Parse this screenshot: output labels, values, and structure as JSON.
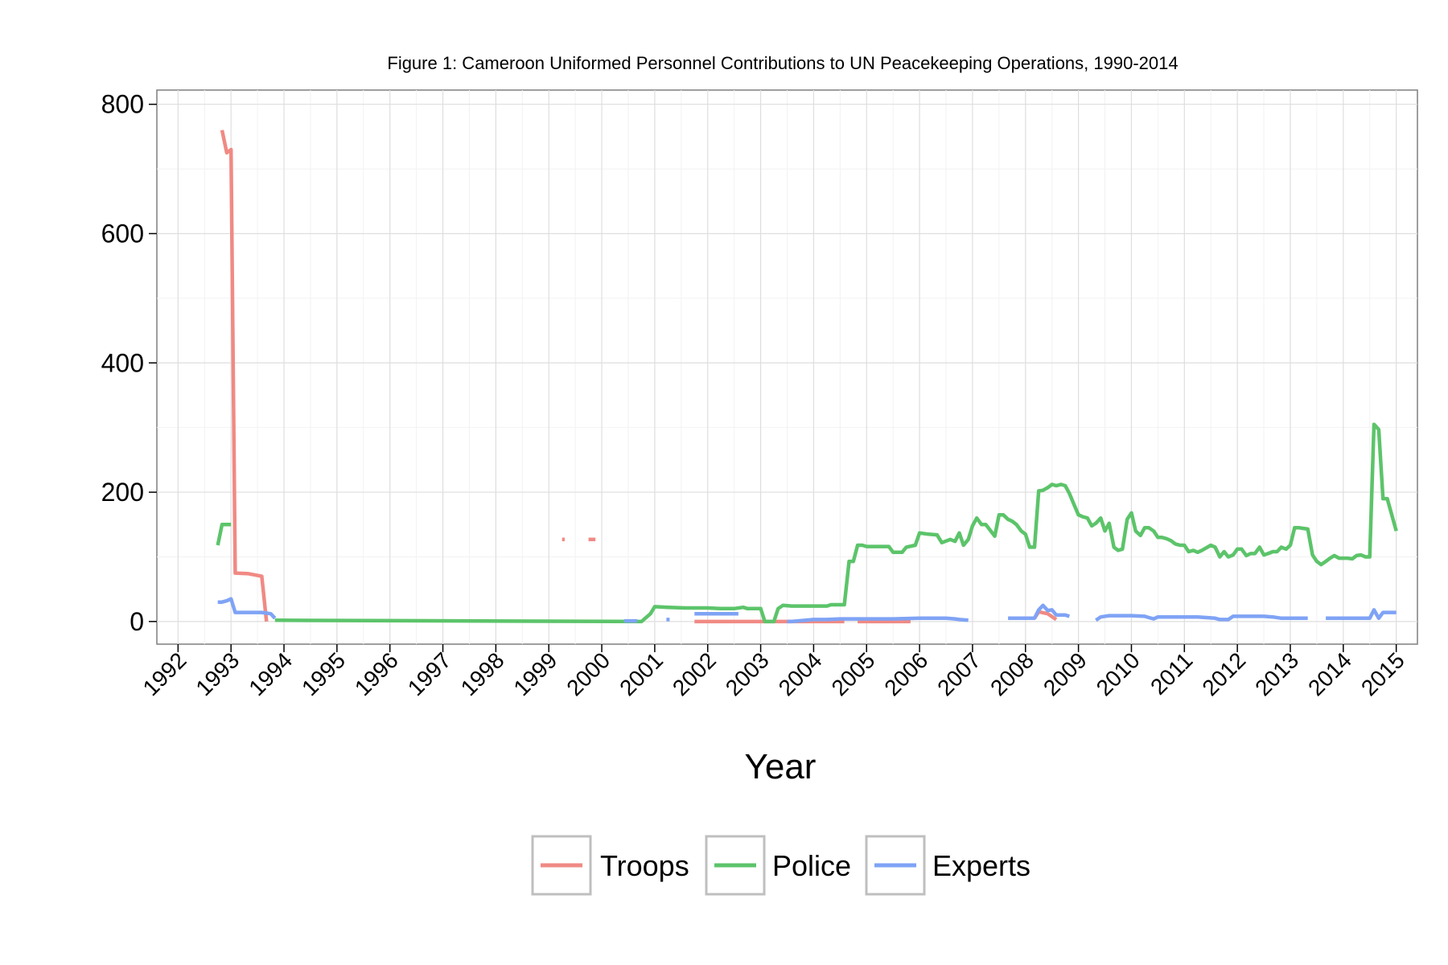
{
  "chart_data": {
    "type": "line",
    "title": "Figure 1: Cameroon Uniformed Personnel Contributions to UN Peacekeeping Operations, 1990-2014",
    "xlabel": "Year",
    "ylabel": "",
    "xlim": [
      1991.6,
      2015.4
    ],
    "ylim": [
      -35,
      822
    ],
    "x_ticks": [
      1992,
      1993,
      1994,
      1995,
      1996,
      1997,
      1998,
      1999,
      2000,
      2001,
      2002,
      2003,
      2004,
      2005,
      2006,
      2007,
      2008,
      2009,
      2010,
      2011,
      2012,
      2013,
      2014,
      2015
    ],
    "x_tick_labels": [
      "1992",
      "1993",
      "1994",
      "1995",
      "1996",
      "1997",
      "1998",
      "1999",
      "2000",
      "2001",
      "2002",
      "2003",
      "2004",
      "2005",
      "2006",
      "2007",
      "2008",
      "2009",
      "2010",
      "2011",
      "2012",
      "2013",
      "2014",
      "2015"
    ],
    "y_ticks": [
      0,
      200,
      400,
      600,
      800
    ],
    "y_tick_labels": [
      "0",
      "200",
      "400",
      "600",
      "800"
    ],
    "grid": true,
    "legend_position": "bottom",
    "series": [
      {
        "name": "Troops",
        "color": "#f08a84",
        "segments": [
          [
            [
              1992.83,
              760
            ],
            [
              1992.92,
              725
            ],
            [
              1993.0,
              730
            ],
            [
              1993.08,
              75
            ],
            [
              1993.33,
              74
            ],
            [
              1993.58,
              70
            ],
            [
              1993.67,
              0
            ]
          ],
          [
            [
              1999.25,
              127
            ],
            [
              1999.3,
              127
            ]
          ],
          [
            [
              1999.75,
              127
            ],
            [
              1999.88,
              127
            ]
          ],
          [
            [
              2001.75,
              0
            ],
            [
              2003.5,
              0
            ]
          ],
          [
            [
              2003.5,
              0
            ],
            [
              2004.58,
              0
            ]
          ],
          [
            [
              2004.83,
              0
            ],
            [
              2005.83,
              0
            ]
          ],
          [
            [
              2008.17,
              5
            ],
            [
              2008.25,
              15
            ],
            [
              2008.42,
              12
            ],
            [
              2008.58,
              3
            ]
          ]
        ]
      },
      {
        "name": "Police",
        "color": "#5cc46a",
        "segments": [
          [
            [
              1992.75,
              118
            ],
            [
              1992.83,
              150
            ],
            [
              1992.92,
              150
            ],
            [
              1993.0,
              150
            ]
          ],
          [
            [
              1993.83,
              2
            ],
            [
              2000.75,
              0
            ],
            [
              2000.92,
              12
            ],
            [
              2001.0,
              23
            ],
            [
              2001.25,
              22
            ],
            [
              2001.58,
              21
            ],
            [
              2002.0,
              21
            ],
            [
              2002.25,
              20
            ],
            [
              2002.5,
              20
            ],
            [
              2002.67,
              22
            ],
            [
              2002.75,
              20
            ],
            [
              2003.0,
              20
            ],
            [
              2003.08,
              0
            ],
            [
              2003.25,
              0
            ],
            [
              2003.33,
              20
            ],
            [
              2003.42,
              25
            ],
            [
              2003.58,
              24
            ],
            [
              2004.0,
              24
            ],
            [
              2004.25,
              24
            ],
            [
              2004.33,
              26
            ],
            [
              2004.58,
              26
            ],
            [
              2004.67,
              93
            ],
            [
              2004.75,
              93
            ],
            [
              2004.83,
              118
            ],
            [
              2004.92,
              118
            ],
            [
              2005.0,
              116
            ],
            [
              2005.42,
              116
            ],
            [
              2005.5,
              107
            ],
            [
              2005.67,
              107
            ],
            [
              2005.75,
              115
            ],
            [
              2005.92,
              118
            ],
            [
              2006.0,
              137
            ],
            [
              2006.17,
              135
            ],
            [
              2006.33,
              134
            ],
            [
              2006.42,
              122
            ],
            [
              2006.58,
              127
            ],
            [
              2006.67,
              124
            ],
            [
              2006.75,
              137
            ],
            [
              2006.83,
              118
            ],
            [
              2006.92,
              127
            ],
            [
              2007.0,
              148
            ],
            [
              2007.08,
              160
            ],
            [
              2007.17,
              150
            ],
            [
              2007.25,
              150
            ],
            [
              2007.42,
              132
            ],
            [
              2007.5,
              165
            ],
            [
              2007.58,
              165
            ],
            [
              2007.67,
              158
            ],
            [
              2007.75,
              155
            ],
            [
              2007.83,
              150
            ],
            [
              2007.92,
              140
            ],
            [
              2008.0,
              135
            ],
            [
              2008.08,
              115
            ],
            [
              2008.17,
              115
            ],
            [
              2008.25,
              202
            ],
            [
              2008.33,
              203
            ],
            [
              2008.42,
              207
            ],
            [
              2008.5,
              212
            ],
            [
              2008.58,
              210
            ],
            [
              2008.67,
              212
            ],
            [
              2008.75,
              210
            ],
            [
              2008.83,
              198
            ],
            [
              2008.92,
              180
            ],
            [
              2009.0,
              165
            ],
            [
              2009.08,
              162
            ],
            [
              2009.17,
              160
            ],
            [
              2009.25,
              148
            ],
            [
              2009.33,
              152
            ],
            [
              2009.42,
              160
            ],
            [
              2009.5,
              140
            ],
            [
              2009.58,
              152
            ],
            [
              2009.67,
              115
            ],
            [
              2009.75,
              110
            ],
            [
              2009.83,
              112
            ],
            [
              2009.92,
              158
            ],
            [
              2010.0,
              168
            ],
            [
              2010.08,
              140
            ],
            [
              2010.17,
              133
            ],
            [
              2010.25,
              145
            ],
            [
              2010.33,
              145
            ],
            [
              2010.42,
              140
            ],
            [
              2010.5,
              130
            ],
            [
              2010.58,
              130
            ],
            [
              2010.67,
              128
            ],
            [
              2010.75,
              125
            ],
            [
              2010.83,
              120
            ],
            [
              2010.92,
              118
            ],
            [
              2011.0,
              118
            ],
            [
              2011.08,
              108
            ],
            [
              2011.17,
              110
            ],
            [
              2011.25,
              107
            ],
            [
              2011.33,
              110
            ],
            [
              2011.5,
              118
            ],
            [
              2011.58,
              115
            ],
            [
              2011.67,
              100
            ],
            [
              2011.75,
              108
            ],
            [
              2011.83,
              100
            ],
            [
              2011.92,
              103
            ],
            [
              2012.0,
              112
            ],
            [
              2012.08,
              112
            ],
            [
              2012.17,
              102
            ],
            [
              2012.25,
              105
            ],
            [
              2012.33,
              105
            ],
            [
              2012.42,
              115
            ],
            [
              2012.5,
              103
            ],
            [
              2012.58,
              105
            ],
            [
              2012.67,
              108
            ],
            [
              2012.75,
              108
            ],
            [
              2012.83,
              115
            ],
            [
              2012.92,
              112
            ],
            [
              2013.0,
              118
            ],
            [
              2013.08,
              145
            ],
            [
              2013.17,
              145
            ],
            [
              2013.25,
              144
            ],
            [
              2013.33,
              143
            ],
            [
              2013.42,
              103
            ],
            [
              2013.5,
              93
            ],
            [
              2013.58,
              88
            ],
            [
              2013.67,
              93
            ],
            [
              2013.75,
              98
            ],
            [
              2013.83,
              102
            ],
            [
              2013.92,
              98
            ],
            [
              2014.0,
              98
            ],
            [
              2014.08,
              98
            ],
            [
              2014.17,
              97
            ],
            [
              2014.25,
              102
            ],
            [
              2014.33,
              103
            ],
            [
              2014.42,
              100
            ],
            [
              2014.5,
              100
            ],
            [
              2014.58,
              305
            ],
            [
              2014.67,
              297
            ],
            [
              2014.75,
              190
            ],
            [
              2014.83,
              190
            ],
            [
              2015.0,
              140
            ]
          ]
        ]
      },
      {
        "name": "Experts",
        "color": "#7fa3f5",
        "segments": [
          [
            [
              1992.75,
              30
            ],
            [
              1992.83,
              30
            ],
            [
              1992.92,
              32
            ],
            [
              1993.0,
              35
            ],
            [
              1993.08,
              14
            ],
            [
              1993.17,
              14
            ],
            [
              1993.58,
              14
            ],
            [
              1993.75,
              12
            ],
            [
              1993.83,
              5
            ]
          ],
          [
            [
              2000.42,
              1
            ],
            [
              2000.67,
              1
            ]
          ],
          [
            [
              2001.25,
              3
            ],
            [
              2001.25,
              3
            ]
          ],
          [
            [
              2001.75,
              12
            ],
            [
              2002.58,
              12
            ]
          ],
          [
            [
              2003.5,
              0
            ],
            [
              2003.58,
              0
            ],
            [
              2004.0,
              3
            ],
            [
              2004.25,
              3
            ],
            [
              2004.5,
              4
            ],
            [
              2005.0,
              4
            ],
            [
              2005.5,
              4
            ],
            [
              2006.0,
              5
            ],
            [
              2006.5,
              5
            ],
            [
              2006.67,
              4
            ],
            [
              2006.75,
              3
            ],
            [
              2006.92,
              2
            ]
          ],
          [
            [
              2007.67,
              5
            ],
            [
              2008.17,
              5
            ],
            [
              2008.25,
              18
            ],
            [
              2008.33,
              25
            ],
            [
              2008.42,
              17
            ],
            [
              2008.5,
              18
            ],
            [
              2008.58,
              10
            ],
            [
              2008.75,
              10
            ],
            [
              2008.83,
              8
            ]
          ],
          [
            [
              2009.33,
              2
            ],
            [
              2009.42,
              7
            ],
            [
              2009.58,
              9
            ],
            [
              2010.0,
              9
            ],
            [
              2010.25,
              8
            ],
            [
              2010.33,
              6
            ],
            [
              2010.42,
              4
            ],
            [
              2010.5,
              7
            ],
            [
              2010.67,
              7
            ],
            [
              2011.0,
              7
            ],
            [
              2011.25,
              7
            ],
            [
              2011.42,
              6
            ],
            [
              2011.58,
              5
            ],
            [
              2011.67,
              3
            ],
            [
              2011.83,
              3
            ],
            [
              2011.92,
              8
            ],
            [
              2012.0,
              8
            ],
            [
              2012.25,
              8
            ],
            [
              2012.5,
              8
            ],
            [
              2012.67,
              7
            ],
            [
              2012.83,
              5
            ],
            [
              2013.0,
              5
            ],
            [
              2013.17,
              5
            ],
            [
              2013.33,
              5
            ]
          ],
          [
            [
              2013.67,
              5
            ],
            [
              2014.5,
              5
            ],
            [
              2014.58,
              18
            ],
            [
              2014.67,
              5
            ],
            [
              2014.75,
              14
            ],
            [
              2014.83,
              14
            ],
            [
              2015.0,
              14
            ]
          ]
        ]
      }
    ]
  }
}
